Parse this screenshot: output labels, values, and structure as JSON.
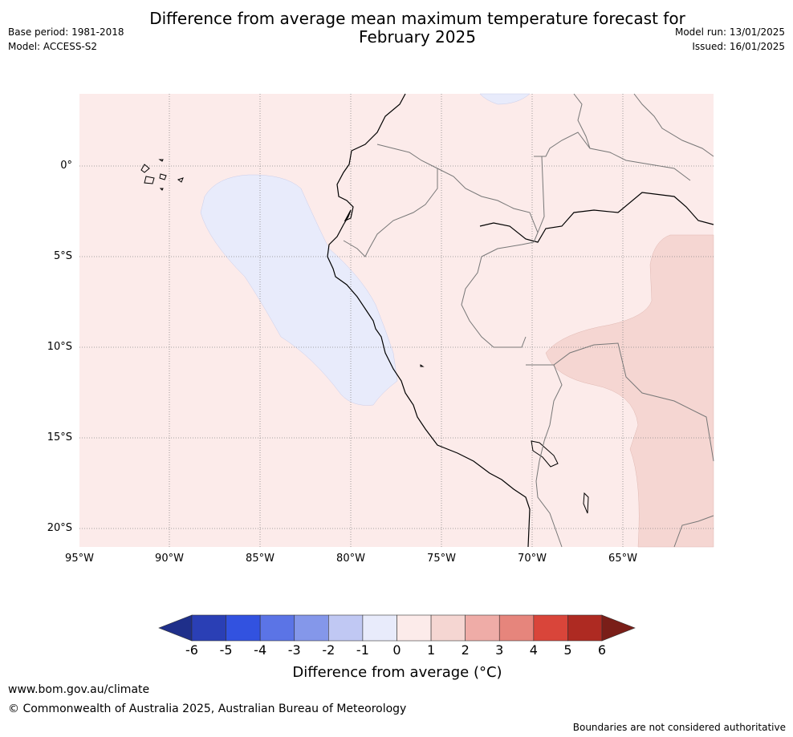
{
  "title_line1": "Difference from average mean maximum temperature forecast for",
  "title_line2": "February 2025",
  "base_period": "Base period: 1981-2018",
  "model": "Model: ACCESS-S2",
  "model_run": "Model run: 13/01/2025",
  "issued": "Issued: 16/01/2025",
  "lat_labels": [
    "0°",
    "5°S",
    "10°S",
    "15°S",
    "20°S"
  ],
  "lon_labels": [
    "95°W",
    "90°W",
    "85°W",
    "80°W",
    "75°W",
    "70°W",
    "65°W"
  ],
  "colorbar": {
    "ticks": [
      "-6",
      "-5",
      "-4",
      "-3",
      "-2",
      "-1",
      "0",
      "1",
      "2",
      "3",
      "4",
      "5",
      "6"
    ],
    "colors": [
      "#1f2f8a",
      "#2a3fb5",
      "#3252e0",
      "#5b74e6",
      "#8497ea",
      "#c0c8f3",
      "#e8ebfb",
      "#fcebea",
      "#f5d6d2",
      "#efaca7",
      "#e6857c",
      "#d9453a",
      "#ae2a22",
      "#7a1e18"
    ],
    "label": "Difference from average (°C)"
  },
  "website": "www.bom.gov.au/climate",
  "copyright": "© Commonwealth of Australia 2025, Australian Bureau of Meteorology",
  "disclaimer": "Boundaries are not considered authoritative"
}
